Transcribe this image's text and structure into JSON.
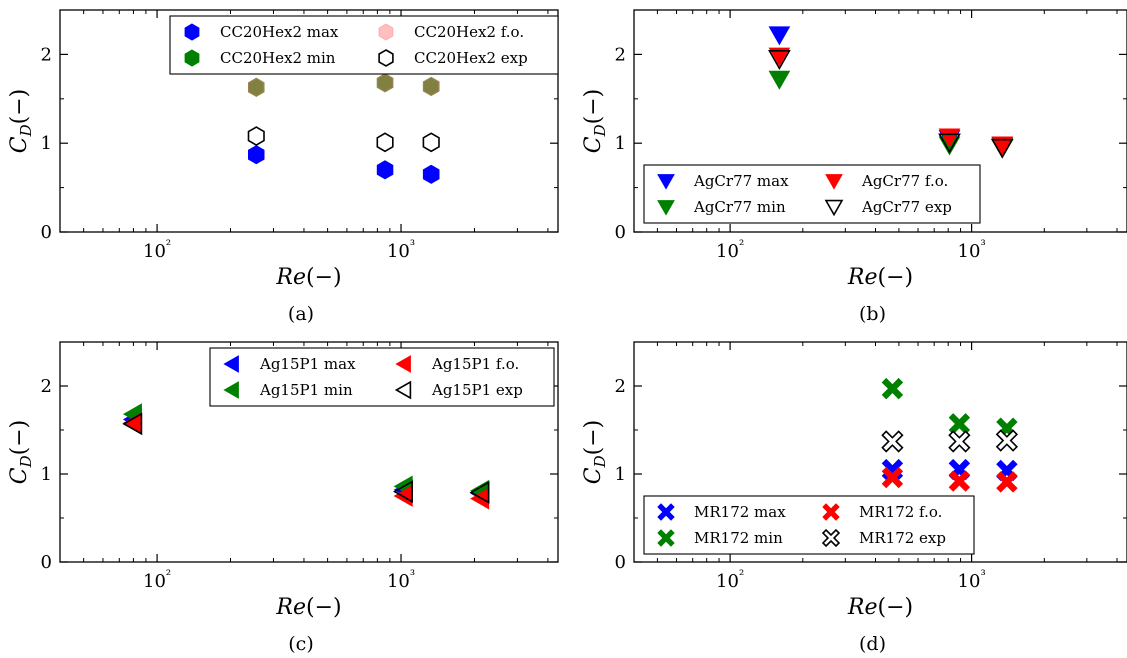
{
  "chart_data": [
    {
      "type": "scatter",
      "panel_label": "(a)",
      "xlabel": "Re(−)",
      "ylabel": "C_D(−)",
      "xscale": "log",
      "xlim": [
        40,
        4400
      ],
      "ylim": [
        0,
        2.5
      ],
      "yticks": [
        0,
        1,
        2
      ],
      "xticks": [
        100,
        1000
      ],
      "xtick_labels": [
        "10²",
        "10³"
      ],
      "legend_location": "top-right",
      "legend_columns": 2,
      "marker": "hexagon",
      "series": [
        {
          "name": "CC20Hex2 max",
          "color": "#0000ff",
          "filled": true,
          "points": [
            [
              255,
              0.87
            ],
            [
              860,
              0.7
            ],
            [
              1330,
              0.65
            ]
          ]
        },
        {
          "name": "CC20Hex2 min",
          "color": "#008000",
          "filled": true,
          "points": [
            [
              255,
              1.63
            ],
            [
              860,
              1.68
            ],
            [
              1330,
              1.64
            ]
          ]
        },
        {
          "name": "CC20Hex2 f.o.",
          "color": "#ff7f7f",
          "filled": true,
          "alpha": 0.5,
          "points": [
            [
              255,
              1.63
            ],
            [
              860,
              1.68
            ],
            [
              1330,
              1.64
            ]
          ]
        },
        {
          "name": "CC20Hex2 exp",
          "color": "#000000",
          "filled": false,
          "points": [
            [
              255,
              1.08
            ],
            [
              860,
              1.01
            ],
            [
              1330,
              1.01
            ]
          ]
        }
      ]
    },
    {
      "type": "scatter",
      "panel_label": "(b)",
      "xlabel": "Re(−)",
      "ylabel": "C_D(−)",
      "xscale": "log",
      "xlim": [
        40,
        4400
      ],
      "ylim": [
        0,
        2.5
      ],
      "yticks": [
        0,
        1,
        2
      ],
      "xticks": [
        100,
        1000
      ],
      "xtick_labels": [
        "10²",
        "10³"
      ],
      "legend_location": "bottom-left",
      "legend_columns": 2,
      "marker": "triangle-down",
      "series": [
        {
          "name": "AgCr77 max",
          "color": "#0000ff",
          "filled": true,
          "points": [
            [
              160,
              2.22
            ],
            [
              810,
              1.05
            ],
            [
              1340,
              0.97
            ]
          ]
        },
        {
          "name": "AgCr77 min",
          "color": "#008000",
          "filled": true,
          "points": [
            [
              160,
              1.72
            ],
            [
              810,
              0.98
            ],
            [
              1340,
              0.96
            ]
          ]
        },
        {
          "name": "AgCr77 f.o.",
          "color": "#ff0000",
          "filled": true,
          "points": [
            [
              160,
              1.98
            ],
            [
              810,
              1.07
            ],
            [
              1340,
              0.98
            ]
          ]
        },
        {
          "name": "AgCr77 exp",
          "color": "#000000",
          "filled": false,
          "points": [
            [
              160,
              1.95
            ],
            [
              810,
              1.01
            ],
            [
              1340,
              0.95
            ]
          ]
        }
      ]
    },
    {
      "type": "scatter",
      "panel_label": "(c)",
      "xlabel": "Re(−)",
      "ylabel": "C_D(−)",
      "xscale": "log",
      "xlim": [
        40,
        4400
      ],
      "ylim": [
        0,
        2.5
      ],
      "yticks": [
        0,
        1,
        2
      ],
      "xticks": [
        100,
        1000
      ],
      "xtick_labels": [
        "10²",
        "10³"
      ],
      "legend_location": "top-right",
      "legend_columns": 2,
      "marker": "triangle-left",
      "series": [
        {
          "name": "Ag15P1 max",
          "color": "#0000ff",
          "filled": true,
          "points": [
            [
              80,
              1.62
            ],
            [
              1030,
              0.82
            ],
            [
              2120,
              0.78
            ]
          ]
        },
        {
          "name": "Ag15P1 min",
          "color": "#008000",
          "filled": true,
          "points": [
            [
              80,
              1.68
            ],
            [
              1030,
              0.86
            ],
            [
              2120,
              0.81
            ]
          ]
        },
        {
          "name": "Ag15P1 f.o.",
          "color": "#ff0000",
          "filled": true,
          "points": [
            [
              80,
              1.58
            ],
            [
              1030,
              0.75
            ],
            [
              2120,
              0.72
            ]
          ]
        },
        {
          "name": "Ag15P1 exp",
          "color": "#000000",
          "filled": false,
          "points": [
            [
              80,
              1.57
            ],
            [
              1030,
              0.8
            ],
            [
              2120,
              0.79
            ]
          ]
        }
      ]
    },
    {
      "type": "scatter",
      "panel_label": "(d)",
      "xlabel": "Re(−)",
      "ylabel": "C_D(−)",
      "xscale": "log",
      "xlim": [
        40,
        4400
      ],
      "ylim": [
        0,
        2.5
      ],
      "yticks": [
        0,
        1,
        2
      ],
      "xticks": [
        100,
        1000
      ],
      "xtick_labels": [
        "10²",
        "10³"
      ],
      "legend_location": "bottom-left",
      "legend_columns": 2,
      "marker": "x-cross",
      "series": [
        {
          "name": "MR172 max",
          "color": "#0000ff",
          "filled": true,
          "points": [
            [
              470,
              1.05
            ],
            [
              890,
              1.05
            ],
            [
              1400,
              1.04
            ]
          ]
        },
        {
          "name": "MR172 min",
          "color": "#008000",
          "filled": true,
          "points": [
            [
              470,
              1.97
            ],
            [
              890,
              1.57
            ],
            [
              1400,
              1.52
            ]
          ]
        },
        {
          "name": "MR172 f.o.",
          "color": "#ff0000",
          "filled": true,
          "points": [
            [
              470,
              0.96
            ],
            [
              890,
              0.92
            ],
            [
              1400,
              0.91
            ]
          ]
        },
        {
          "name": "MR172 exp",
          "color": "#000000",
          "filled": false,
          "points": [
            [
              470,
              1.37
            ],
            [
              890,
              1.37
            ],
            [
              1400,
              1.38
            ]
          ]
        }
      ]
    }
  ]
}
